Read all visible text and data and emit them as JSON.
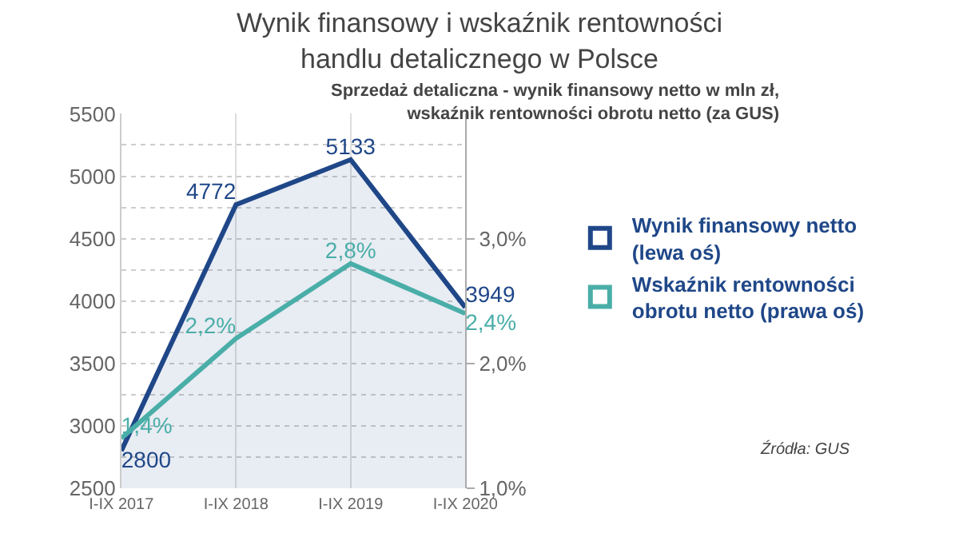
{
  "chart_data": {
    "type": "line",
    "title": "Wynik finansowy i wskaźnik rentowności\nhandlu detalicznego w Polsce",
    "subtitle": "Sprzedaż detaliczna - wynik finansowy netto w mln zł,\nwskaźnik rentowności obrotu netto (za GUS)",
    "categories": [
      "I-IX 2017",
      "I-IX 2018",
      "I-IX 2019",
      "I-IX 2020"
    ],
    "series": [
      {
        "name": "Wynik finansowy netto\n(lewa oś)",
        "type": "area",
        "color": "#1f4788",
        "values": [
          2800,
          4772,
          5133,
          3949
        ],
        "value_labels": [
          "2800",
          "4772",
          "5133",
          "3949"
        ]
      },
      {
        "name": "Wskaźnik rentowności\nobrotu netto (prawa oś)",
        "axis": "y2",
        "color": "#4aaea8",
        "values": [
          1.4,
          2.2,
          2.8,
          2.4
        ],
        "value_labels": [
          "1,4%",
          "2,2%",
          "2,8%",
          "2,4%"
        ]
      }
    ],
    "ylim": [
      2500,
      5500
    ],
    "yticks": [
      2500,
      {
        "value": 2750,
        "label": null
      },
      3000,
      {
        "value": 3250,
        "label": null
      },
      3500,
      {
        "value": 3750,
        "label": null
      },
      4000,
      {
        "value": 4250,
        "label": null
      },
      4500,
      {
        "value": 4750,
        "label": null
      },
      5000,
      {
        "value": 5250,
        "label": null
      },
      5500
    ],
    "y2lim": [
      1.0,
      4.0
    ],
    "y2ticks": [
      {
        "value": 1.0,
        "label": "1,0%"
      },
      {
        "value": 2.0,
        "label": "2,0%"
      },
      {
        "value": 3.0,
        "label": "3,0%"
      }
    ],
    "grid": true,
    "legend": "right",
    "marker": "none",
    "annotations": [
      "Źródła: GUS"
    ]
  }
}
